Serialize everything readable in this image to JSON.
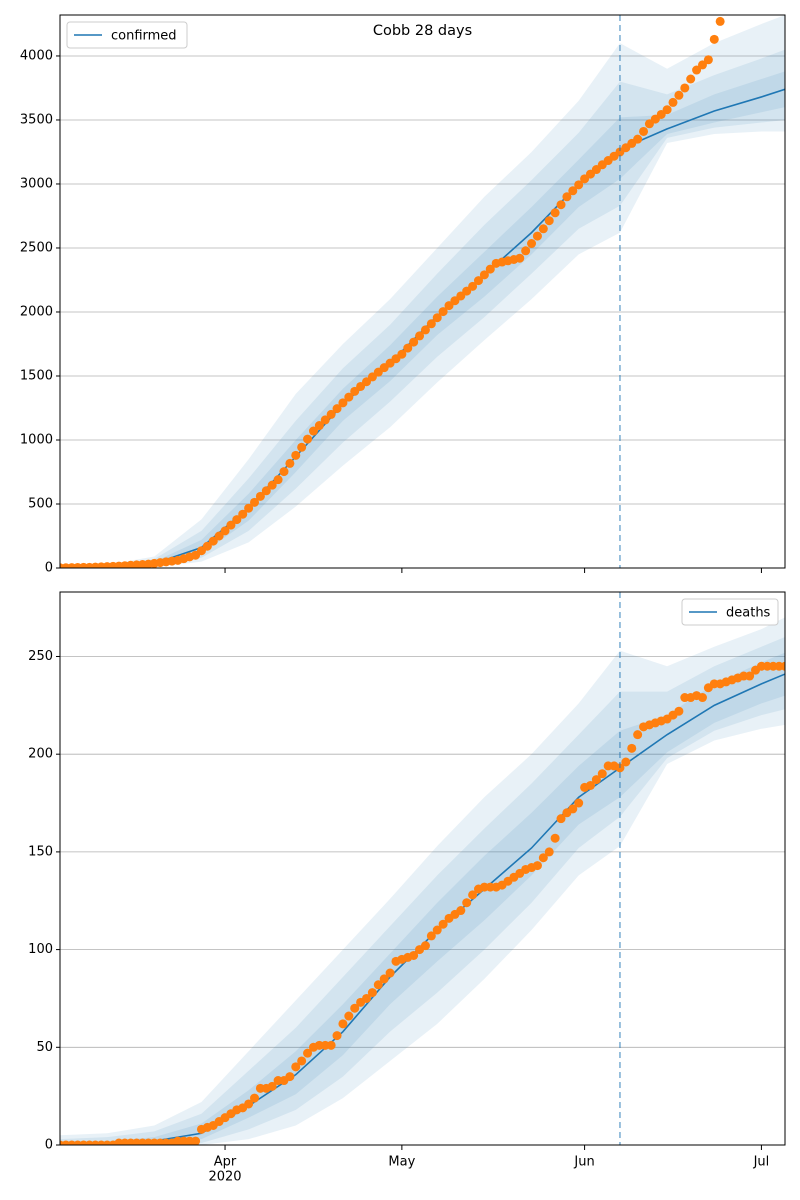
{
  "chart_data": [
    {
      "type": "line",
      "title": "Cobb 28 days",
      "xlim": [
        0,
        123
      ],
      "ylim": [
        0,
        4320
      ],
      "yticks": [
        0,
        500,
        1000,
        1500,
        2000,
        2500,
        3000,
        3500,
        4000
      ],
      "grid": true,
      "legend": "upper left",
      "vline": {
        "x": 95,
        "color": "#1f77b4"
      },
      "series": [
        {
          "name": "confirmed",
          "color": "#1f77b4",
          "x": [
            0,
            8,
            16,
            24,
            32,
            40,
            48,
            56,
            64,
            72,
            80,
            88,
            95,
            103,
            111,
            119,
            123
          ],
          "values": [
            0,
            8,
            35,
            160,
            470,
            870,
            1280,
            1600,
            1970,
            2290,
            2620,
            3000,
            3270,
            3430,
            3570,
            3680,
            3740
          ],
          "bands": [
            {
              "lower": [
                0,
                0,
                5,
                50,
                200,
                480,
                800,
                1100,
                1450,
                1780,
                2100,
                2450,
                2620,
                3320,
                3390,
                3410,
                3410
              ],
              "upper": [
                5,
                25,
                90,
                380,
                850,
                1360,
                1750,
                2100,
                2500,
                2900,
                3250,
                3650,
                4100,
                3900,
                4100,
                4250,
                4320
              ]
            },
            {
              "lower": [
                0,
                2,
                12,
                80,
                290,
                620,
                980,
                1300,
                1650,
                1960,
                2300,
                2650,
                2830,
                3360,
                3440,
                3480,
                3500
              ],
              "upper": [
                3,
                18,
                70,
                290,
                700,
                1150,
                1560,
                1900,
                2300,
                2680,
                3030,
                3400,
                3800,
                3700,
                3850,
                3980,
                4050
              ]
            },
            {
              "lower": [
                0,
                4,
                22,
                110,
                370,
                750,
                1150,
                1460,
                1820,
                2120,
                2450,
                2820,
                3040,
                3390,
                3480,
                3560,
                3600
              ],
              "upper": [
                2,
                12,
                50,
                220,
                580,
                1000,
                1400,
                1740,
                2120,
                2470,
                2820,
                3190,
                3520,
                3540,
                3700,
                3820,
                3880
              ]
            }
          ]
        }
      ],
      "observed": {
        "color": "#ff7f0e",
        "x": [
          0,
          1,
          2,
          3,
          4,
          5,
          6,
          7,
          8,
          9,
          10,
          11,
          12,
          13,
          14,
          15,
          16,
          17,
          18,
          19,
          20,
          21,
          22,
          23,
          24,
          25,
          26,
          27,
          28,
          29,
          30,
          31,
          32,
          33,
          34,
          35,
          36,
          37,
          38,
          39,
          40,
          41,
          42,
          43,
          44,
          45,
          46,
          47,
          48,
          49,
          50,
          51,
          52,
          53,
          54,
          55,
          56,
          57,
          58,
          59,
          60,
          61,
          62,
          63,
          64,
          65,
          66,
          67,
          68,
          69,
          70,
          71,
          72,
          73,
          74,
          75,
          76,
          77,
          78,
          79,
          80,
          81,
          82,
          83,
          84,
          85,
          86,
          87,
          88,
          89,
          90,
          91,
          92,
          93,
          94,
          95,
          96,
          97,
          98,
          99,
          100,
          101,
          102,
          103,
          104,
          105,
          106,
          107,
          108,
          109,
          110,
          111,
          112
        ],
        "values": [
          2,
          2,
          3,
          4,
          5,
          5,
          7,
          9,
          11,
          13,
          15,
          18,
          21,
          24,
          27,
          30,
          36,
          42,
          48,
          54,
          60,
          73,
          87,
          100,
          135,
          170,
          210,
          250,
          290,
          335,
          378,
          420,
          467,
          513,
          560,
          603,
          647,
          690,
          753,
          817,
          880,
          943,
          1007,
          1070,
          1113,
          1157,
          1200,
          1245,
          1290,
          1335,
          1380,
          1418,
          1455,
          1493,
          1530,
          1565,
          1600,
          1635,
          1670,
          1718,
          1765,
          1813,
          1860,
          1908,
          1955,
          2003,
          2050,
          2088,
          2125,
          2163,
          2200,
          2245,
          2290,
          2335,
          2380,
          2390,
          2400,
          2410,
          2420,
          2478,
          2535,
          2593,
          2650,
          2713,
          2775,
          2838,
          2900,
          2947,
          2993,
          3040,
          3077,
          3113,
          3150,
          3183,
          3217,
          3250,
          3283,
          3317,
          3350,
          3410,
          3470,
          3507,
          3543,
          3580,
          3637,
          3693,
          3750,
          3820,
          3890,
          3930,
          3970,
          4130,
          4270
        ]
      }
    },
    {
      "type": "line",
      "xlim": [
        0,
        123
      ],
      "ylim": [
        0,
        283
      ],
      "yticks": [
        0,
        50,
        100,
        150,
        200,
        250
      ],
      "xticks": [
        {
          "value": 28,
          "label": "Apr"
        },
        {
          "value": 58,
          "label": "May"
        },
        {
          "value": 89,
          "label": "Jun"
        },
        {
          "value": 119,
          "label": "Jul"
        }
      ],
      "x_year_label": "2020",
      "grid": true,
      "legend": "upper right",
      "vline": {
        "x": 95,
        "color": "#1f77b4"
      },
      "series": [
        {
          "name": "deaths",
          "color": "#1f77b4",
          "x": [
            0,
            8,
            16,
            24,
            32,
            40,
            48,
            56,
            64,
            72,
            80,
            88,
            95,
            103,
            111,
            119,
            123
          ],
          "values": [
            0.5,
            1,
            2,
            6,
            20,
            36,
            58,
            86,
            110,
            131,
            152,
            178,
            193,
            210,
            225,
            236,
            241
          ],
          "bands": [
            {
              "lower": [
                0,
                0,
                0,
                0,
                3,
                10,
                24,
                43,
                62,
                85,
                110,
                138,
                153,
                195,
                207,
                213,
                215
              ],
              "upper": [
                5,
                6,
                10,
                22,
                48,
                74,
                100,
                126,
                153,
                178,
                200,
                226,
                253,
                245,
                255,
                264,
                270
              ]
            },
            {
              "lower": [
                0,
                0,
                0,
                1,
                8,
                18,
                35,
                58,
                78,
                100,
                124,
                152,
                168,
                198,
                212,
                220,
                223
              ],
              "upper": [
                3,
                4,
                7,
                16,
                38,
                60,
                86,
                112,
                138,
                162,
                185,
                210,
                232,
                232,
                245,
                255,
                260
              ]
            },
            {
              "lower": [
                0,
                0,
                1,
                3,
                14,
                26,
                46,
                72,
                94,
                115,
                138,
                164,
                178,
                201,
                216,
                226,
                230
              ],
              "upper": [
                2,
                2,
                4,
                11,
                28,
                48,
                72,
                98,
                124,
                148,
                170,
                194,
                212,
                220,
                236,
                247,
                252
              ]
            }
          ]
        }
      ],
      "observed": {
        "color": "#ff7f0e",
        "x": [
          0,
          1,
          2,
          3,
          4,
          5,
          6,
          7,
          8,
          9,
          10,
          11,
          12,
          13,
          14,
          15,
          16,
          17,
          18,
          19,
          20,
          21,
          22,
          23,
          24,
          25,
          26,
          27,
          28,
          29,
          30,
          31,
          32,
          33,
          34,
          35,
          36,
          37,
          38,
          39,
          40,
          41,
          42,
          43,
          44,
          45,
          46,
          47,
          48,
          49,
          50,
          51,
          52,
          53,
          54,
          55,
          56,
          57,
          58,
          59,
          60,
          61,
          62,
          63,
          64,
          65,
          66,
          67,
          68,
          69,
          70,
          71,
          72,
          73,
          74,
          75,
          76,
          77,
          78,
          79,
          80,
          81,
          82,
          83,
          84,
          85,
          86,
          87,
          88,
          89,
          90,
          91,
          92,
          93,
          94,
          95,
          96,
          97,
          98,
          99,
          100,
          101,
          102,
          103,
          104,
          105,
          106,
          107,
          108,
          109,
          110,
          111,
          112,
          113,
          114,
          115,
          116,
          117,
          118,
          119,
          120,
          121,
          122,
          123
        ],
        "values": [
          0,
          0,
          0,
          0,
          0,
          0,
          0,
          0,
          0,
          0,
          1,
          1,
          1,
          1,
          1,
          1,
          1,
          1,
          1,
          1,
          2,
          2,
          2,
          2,
          8,
          9,
          10,
          12,
          14,
          16,
          18,
          19,
          21,
          24,
          29,
          29,
          30,
          33,
          33,
          35,
          40,
          43,
          47,
          50,
          51,
          51,
          51,
          56,
          62,
          66,
          70,
          73,
          75,
          78,
          82,
          85,
          88,
          94,
          95,
          96,
          97,
          100,
          102,
          107,
          110,
          113,
          116,
          118,
          120,
          124,
          128,
          131,
          132,
          132,
          132,
          133,
          135,
          137,
          139,
          141,
          142,
          143,
          147,
          150,
          157,
          167,
          170,
          172,
          175,
          183,
          184,
          187,
          190,
          194,
          194,
          193,
          196,
          203,
          210,
          214,
          215,
          216,
          217,
          218,
          220,
          222,
          229,
          229,
          230,
          229,
          234,
          236,
          236,
          237,
          238,
          239,
          240,
          240,
          243,
          245,
          245,
          245,
          245,
          245
        ]
      }
    }
  ]
}
